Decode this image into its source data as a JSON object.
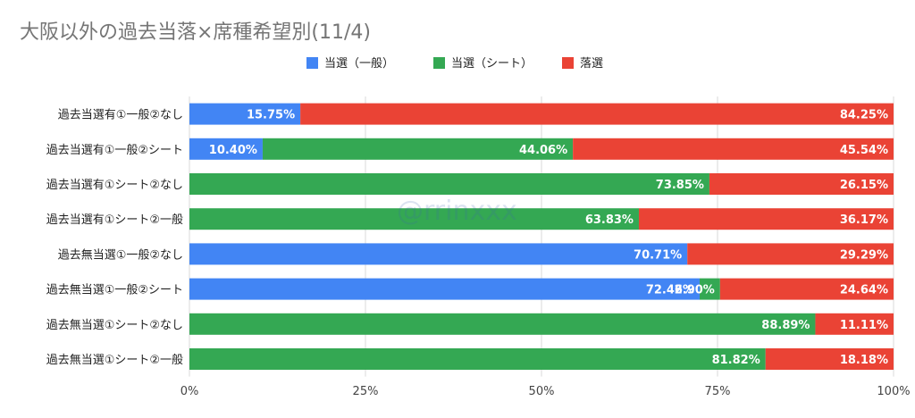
{
  "chart_data": {
    "type": "bar",
    "orientation": "horizontal",
    "stacked": "percent",
    "title": "大阪以外の過去当落×席種希望別(11/4)",
    "watermark": "@rrinxxx",
    "legend_position": "top",
    "categories": [
      "過去当選有①一般②なし",
      "過去当選有①一般②シート",
      "過去当選有①シート②なし",
      "過去当選有①シート②一般",
      "過去無当選①一般②なし",
      "過去無当選①一般②シート",
      "過去無当選①シート②なし",
      "過去無当選①シート②一般"
    ],
    "series": [
      {
        "name": "当選（一般）",
        "color": "#4285F4",
        "values": [
          15.75,
          10.4,
          0.0,
          0.0,
          70.71,
          72.46,
          0.0,
          0.0
        ],
        "labels": [
          "15.75%",
          "10.40%",
          "0.00%",
          "0.00%",
          "70.71%",
          "72.46%",
          "0.00%",
          "0.00%"
        ]
      },
      {
        "name": "当選（シート）",
        "color": "#34A853",
        "values": [
          0.0,
          44.06,
          73.85,
          63.83,
          0.0,
          2.9,
          88.89,
          81.82
        ],
        "labels": [
          "0.00%",
          "44.06%",
          "73.85%",
          "63.83%",
          "0.00%",
          "2.90%",
          "88.89%",
          "81.82%"
        ]
      },
      {
        "name": "落選",
        "color": "#EA4335",
        "values": [
          84.25,
          45.54,
          26.15,
          36.17,
          29.29,
          24.64,
          11.11,
          18.18
        ],
        "labels": [
          "84.25%",
          "45.54%",
          "26.15%",
          "36.17%",
          "29.29%",
          "24.64%",
          "11.11%",
          "18.18%"
        ]
      }
    ],
    "xlim": [
      0,
      100
    ],
    "x_ticks": [
      "0%",
      "25%",
      "50%",
      "75%",
      "100%"
    ],
    "grid": true
  }
}
